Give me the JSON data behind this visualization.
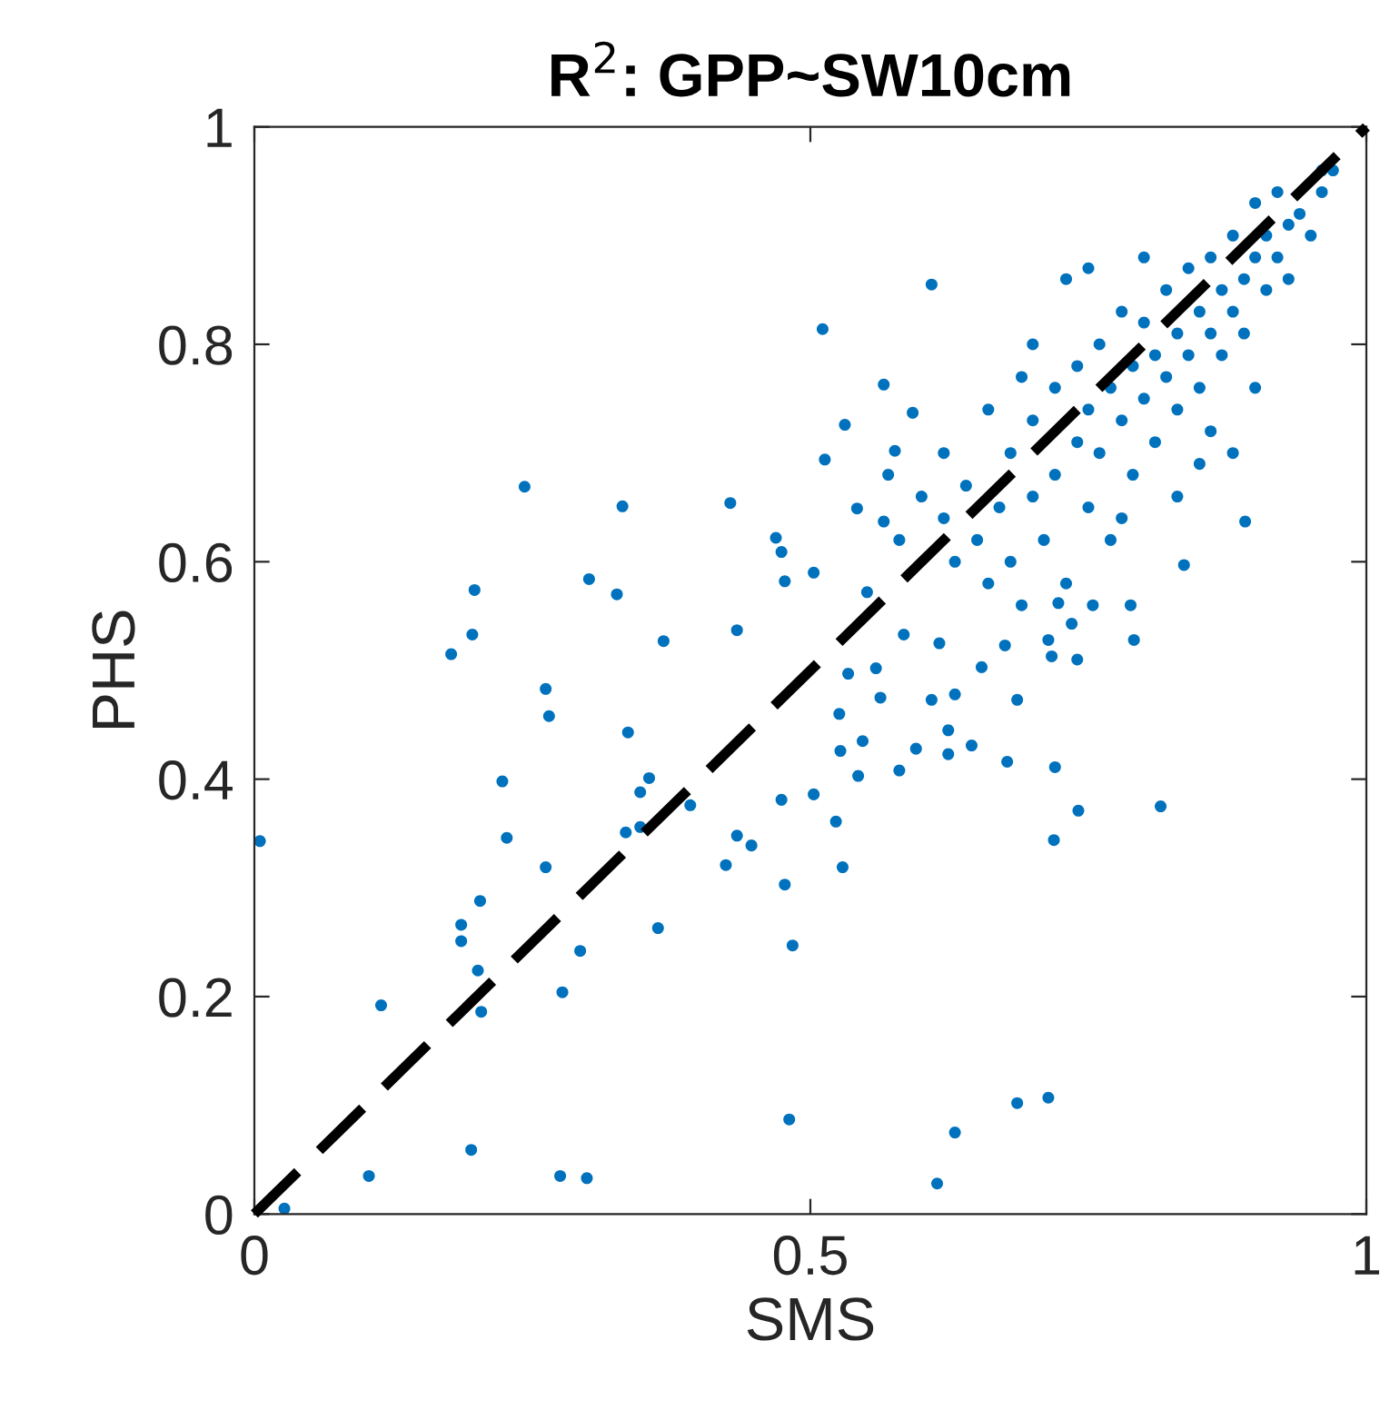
{
  "chart_data": {
    "type": "scatter",
    "title": "R$^{2}$: GPP~SW10cm",
    "xlabel": "SMS",
    "ylabel": "PHS",
    "xlim": [
      0,
      1
    ],
    "ylim": [
      0,
      1
    ],
    "xticks": [
      0,
      0.5,
      1
    ],
    "yticks": [
      0,
      0.2,
      0.4,
      0.6,
      0.8,
      1
    ],
    "grid": false,
    "series": [
      {
        "color": "#0072bd",
        "marker": "circle",
        "x": [
          0.005,
          0.027,
          0.103,
          0.114,
          0.177,
          0.196,
          0.198,
          0.186,
          0.186,
          0.201,
          0.195,
          0.204,
          0.203,
          0.243,
          0.223,
          0.227,
          0.262,
          0.265,
          0.262,
          0.275,
          0.277,
          0.293,
          0.301,
          0.299,
          0.331,
          0.326,
          0.336,
          0.334,
          0.347,
          0.355,
          0.347,
          0.368,
          0.363,
          0.392,
          0.428,
          0.434,
          0.434,
          0.424,
          0.447,
          0.477,
          0.474,
          0.469,
          0.477,
          0.511,
          0.531,
          0.513,
          0.484,
          0.481,
          0.474,
          0.609,
          0.566,
          0.576,
          0.592,
          0.542,
          0.566,
          0.503,
          0.551,
          0.584,
          0.616,
          0.534,
          0.559,
          0.563,
          0.526,
          0.609,
          0.63,
          0.547,
          0.527,
          0.543,
          0.58,
          0.595,
          0.624,
          0.624,
          0.645,
          0.677,
          0.686,
          0.72,
          0.503,
          0.523,
          0.529,
          0.719,
          0.741,
          0.815,
          0.891,
          0.836,
          0.791,
          0.74,
          0.717,
          0.714,
          0.686,
          0.714,
          0.63,
          0.614,
          0.654,
          0.675,
          0.788,
          0.754,
          0.735,
          0.723,
          0.6,
          0.62,
          0.63,
          0.64,
          0.65,
          0.66,
          0.67,
          0.68,
          0.68,
          0.69,
          0.7,
          0.7,
          0.71,
          0.72,
          0.72,
          0.73,
          0.74,
          0.74,
          0.75,
          0.75,
          0.76,
          0.76,
          0.77,
          0.77,
          0.78,
          0.78,
          0.79,
          0.79,
          0.8,
          0.8,
          0.81,
          0.81,
          0.82,
          0.82,
          0.83,
          0.83,
          0.84,
          0.84,
          0.85,
          0.85,
          0.86,
          0.86,
          0.87,
          0.87,
          0.88,
          0.88,
          0.89,
          0.89,
          0.9,
          0.9,
          0.91,
          0.91,
          0.92,
          0.92,
          0.93,
          0.93,
          0.94,
          0.95,
          0.96,
          0.96,
          0.75,
          0.7,
          0.66,
          0.62,
          0.58,
          0.57,
          0.88,
          0.85,
          0.9,
          0.83,
          0.78,
          0.73,
          0.8,
          0.69,
          0.86,
          0.97
        ],
        "values": [
          0.343,
          0.005,
          0.035,
          0.192,
          0.515,
          0.533,
          0.574,
          0.266,
          0.251,
          0.224,
          0.059,
          0.186,
          0.288,
          0.669,
          0.398,
          0.346,
          0.483,
          0.458,
          0.319,
          0.035,
          0.204,
          0.242,
          0.584,
          0.033,
          0.651,
          0.57,
          0.443,
          0.351,
          0.388,
          0.401,
          0.356,
          0.527,
          0.263,
          0.376,
          0.654,
          0.537,
          0.348,
          0.321,
          0.339,
          0.303,
          0.609,
          0.622,
          0.582,
          0.814,
          0.726,
          0.694,
          0.247,
          0.087,
          0.381,
          0.855,
          0.763,
          0.702,
          0.737,
          0.649,
          0.637,
          0.59,
          0.572,
          0.533,
          0.525,
          0.497,
          0.502,
          0.475,
          0.46,
          0.473,
          0.478,
          0.435,
          0.426,
          0.403,
          0.408,
          0.428,
          0.445,
          0.423,
          0.431,
          0.416,
          0.473,
          0.411,
          0.386,
          0.361,
          0.319,
          0.344,
          0.371,
          0.375,
          0.637,
          0.597,
          0.528,
          0.51,
          0.513,
          0.528,
          0.102,
          0.107,
          0.075,
          0.028,
          0.503,
          0.523,
          0.56,
          0.56,
          0.543,
          0.562,
          0.66,
          0.64,
          0.6,
          0.67,
          0.62,
          0.58,
          0.65,
          0.7,
          0.6,
          0.56,
          0.66,
          0.73,
          0.62,
          0.68,
          0.76,
          0.58,
          0.71,
          0.78,
          0.65,
          0.74,
          0.7,
          0.8,
          0.62,
          0.76,
          0.73,
          0.83,
          0.68,
          0.78,
          0.75,
          0.82,
          0.71,
          0.79,
          0.77,
          0.85,
          0.74,
          0.81,
          0.79,
          0.87,
          0.76,
          0.83,
          0.81,
          0.88,
          0.79,
          0.85,
          0.83,
          0.9,
          0.86,
          0.81,
          0.88,
          0.93,
          0.85,
          0.9,
          0.88,
          0.94,
          0.91,
          0.86,
          0.92,
          0.9,
          0.94,
          0.96,
          0.87,
          0.8,
          0.74,
          0.7,
          0.62,
          0.68,
          0.7,
          0.69,
          0.76,
          0.66,
          0.64,
          0.86,
          0.88,
          0.77,
          0.72,
          0.96
        ]
      },
      {
        "type": "line",
        "color": "#000000",
        "line_style": "dashed",
        "x": [
          0,
          1
        ],
        "values": [
          0,
          1
        ]
      }
    ]
  }
}
